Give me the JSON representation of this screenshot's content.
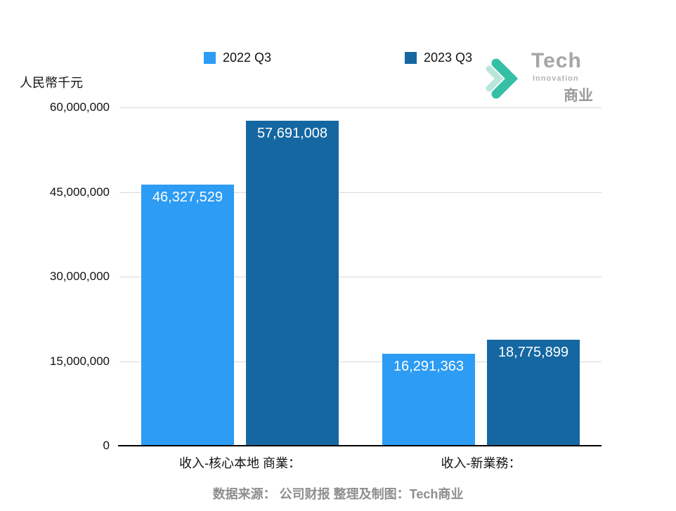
{
  "y_title": "人民幣千元",
  "legend": [
    {
      "label": "2022 Q3",
      "color": "#2d9cf4"
    },
    {
      "label": "2023 Q3",
      "color": "#1567a2"
    }
  ],
  "logo": {
    "title": "Tech",
    "subtitle": "Innovation",
    "cn": "商业",
    "chevron_color": "#35c0a5",
    "chevron_light_color": "#b9e6da"
  },
  "footer": "数据来源： 公司财报 整理及制图：Tech商业",
  "chart_data": {
    "type": "bar",
    "title": "",
    "xlabel": "",
    "ylabel": "人民幣千元",
    "categories": [
      "收入-核心本地 商業：",
      "收入-新業務："
    ],
    "series": [
      {
        "name": "2022 Q3",
        "color": "#2d9cf4",
        "values": [
          46327529,
          16291363
        ],
        "labels": [
          "46,327,529",
          "16,291,363"
        ]
      },
      {
        "name": "2023 Q3",
        "color": "#1567a2",
        "values": [
          57691008,
          18775899
        ],
        "labels": [
          "57,691,008",
          "18,775,899"
        ]
      }
    ],
    "ylim": [
      0,
      60000000
    ],
    "yticks": [
      "0",
      "15,000,000",
      "30,000,000",
      "45,000,000",
      "60,000,000"
    ],
    "grid": true,
    "legend_position": "top"
  }
}
